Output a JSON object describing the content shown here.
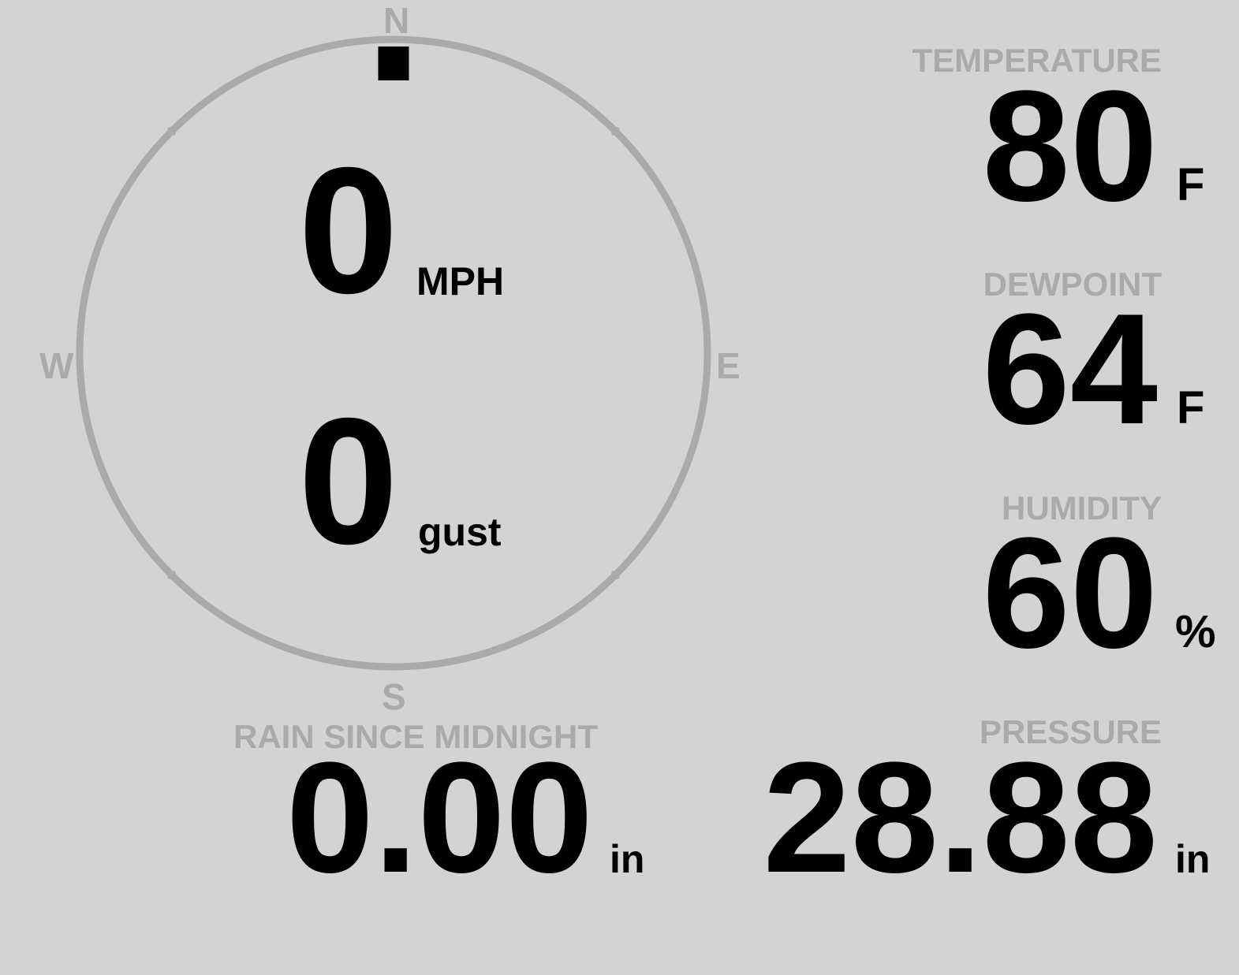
{
  "colors": {
    "background": "#d3d3d3",
    "label": "#aaaaaa",
    "value": "#000000"
  },
  "wind": {
    "direction_deg": 0,
    "speed": "0",
    "speed_unit": "MPH",
    "gust": "0",
    "gust_label": "gust",
    "compass": {
      "n": "N",
      "s": "S",
      "e": "E",
      "w": "W"
    }
  },
  "temperature": {
    "label": "TEMPERATURE",
    "value": "80",
    "unit": "F"
  },
  "dewpoint": {
    "label": "DEWPOINT",
    "value": "64",
    "unit": "F"
  },
  "humidity": {
    "label": "HUMIDITY",
    "value": "60",
    "unit": "%"
  },
  "rain": {
    "label": "RAIN SINCE MIDNIGHT",
    "value": "0.00",
    "unit": "in"
  },
  "pressure": {
    "label": "PRESSURE",
    "value": "28.88",
    "unit": "in"
  }
}
